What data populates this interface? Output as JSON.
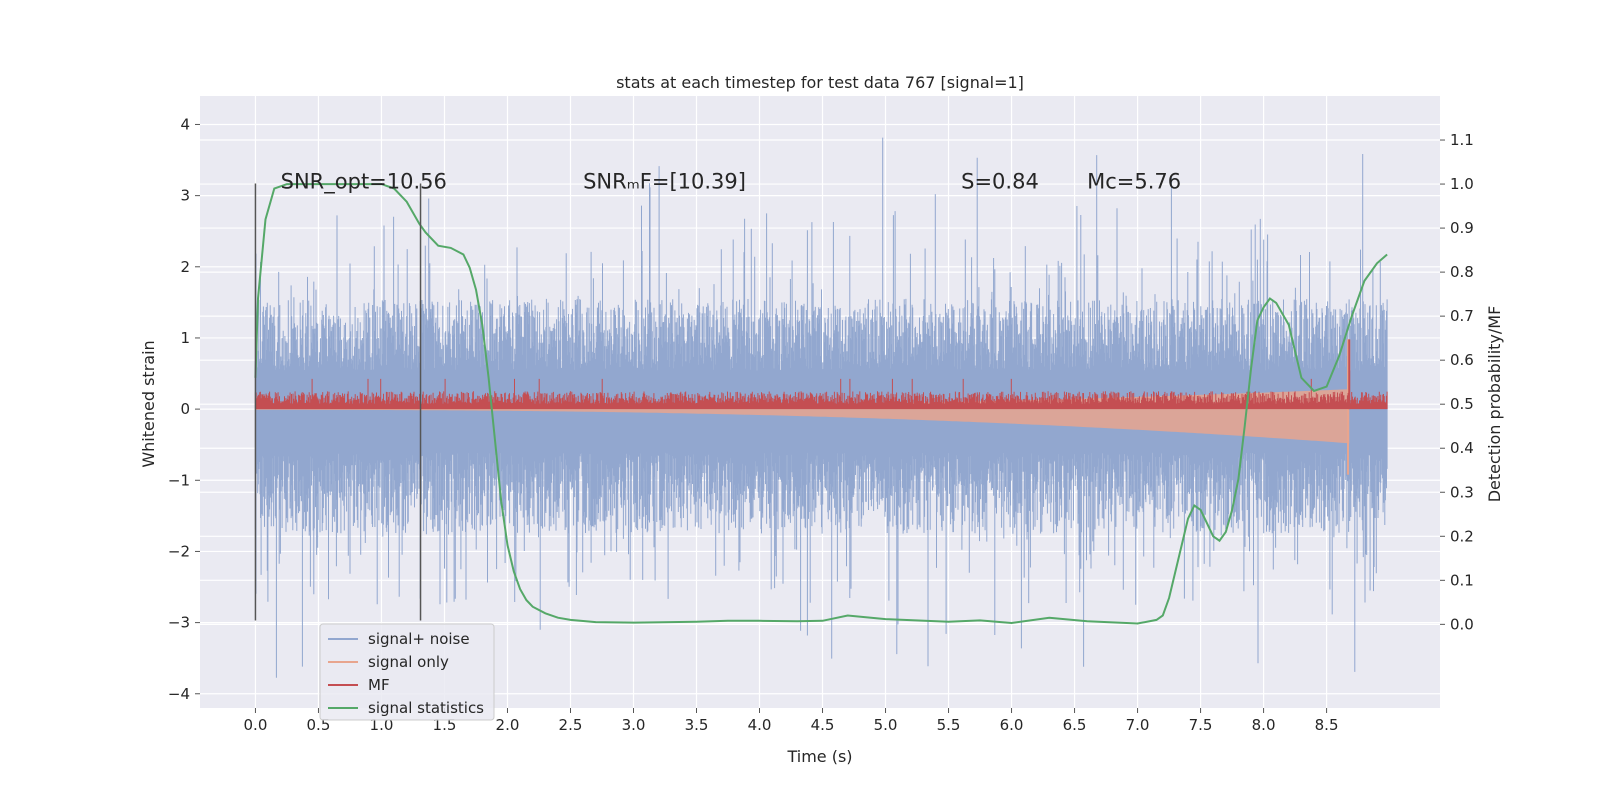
{
  "chart_data": {
    "type": "line",
    "title": "stats at each timestep for test data 767 [signal=1]",
    "xlabel": "Time (s)",
    "ylabel": "Whitened strain",
    "ylabel_right": "Detection probability/MF",
    "xlim": [
      -0.44,
      9.4
    ],
    "ylim": [
      -4.2,
      4.4
    ],
    "ylim_right": [
      -0.19,
      1.2
    ],
    "x_ticks": [
      0.0,
      0.5,
      1.0,
      1.5,
      2.0,
      2.5,
      3.0,
      3.5,
      4.0,
      4.5,
      5.0,
      5.5,
      6.0,
      6.5,
      7.0,
      7.5,
      8.0,
      8.5
    ],
    "x_tick_labels": [
      "0.0",
      "0.5",
      "1.0",
      "1.5",
      "2.0",
      "2.5",
      "3.0",
      "3.5",
      "4.0",
      "4.5",
      "5.0",
      "5.5",
      "6.0",
      "6.5",
      "7.0",
      "7.5",
      "8.0",
      "8.5"
    ],
    "y_ticks": [
      -4,
      -3,
      -2,
      -1,
      0,
      1,
      2,
      3,
      4
    ],
    "y_tick_labels": [
      "−4",
      "−3",
      "−2",
      "−1",
      "0",
      "1",
      "2",
      "3",
      "4"
    ],
    "y_right_ticks": [
      0.0,
      0.1,
      0.2,
      0.3,
      0.4,
      0.5,
      0.6,
      0.7,
      0.8,
      0.9,
      1.0,
      1.1
    ],
    "y_right_tick_labels": [
      "0.0",
      "0.1",
      "0.2",
      "0.3",
      "0.4",
      "0.5",
      "0.6",
      "0.7",
      "0.8",
      "0.9",
      "1.0",
      "1.1"
    ],
    "annotations": [
      {
        "id": "snr-opt",
        "text": "SNR_opt=10.56",
        "x": 0.2,
        "y": 3.2
      },
      {
        "id": "snr-mf",
        "text": "SNRₘF=[10.39]",
        "x": 2.6,
        "y": 3.2
      },
      {
        "id": "s-value",
        "text": "S=0.84",
        "x": 5.6,
        "y": 3.2
      },
      {
        "id": "mc-value",
        "text": "Mᴄ=5.76",
        "x": 6.6,
        "y": 3.2
      }
    ],
    "vertical_markers": [
      {
        "x": 0.0,
        "y_range": [
          -2.97,
          3.17
        ]
      },
      {
        "x": 1.31,
        "y_range": [
          -2.97,
          3.17
        ]
      }
    ],
    "series": [
      {
        "name": "signal+ noise",
        "color": "#92a7cf",
        "x_range": [
          0.0,
          8.98
        ],
        "envelope_upper": 1.55,
        "envelope_lower": -1.75,
        "peak_max": 4.02,
        "peak_min": -3.82
      },
      {
        "name": "signal only",
        "color": "#e8a58e",
        "x_range": [
          0.0,
          8.68
        ],
        "start_amplitude": 0.01,
        "end_amplitude_upper": 0.28,
        "end_amplitude_lower": -0.48,
        "spike": [
          0.98,
          -0.92
        ]
      },
      {
        "name": "MF",
        "color": "#c44e52",
        "x_range": [
          0.0,
          8.98
        ],
        "baseline": 0.0,
        "typical_max": 0.25,
        "peak": 0.98
      },
      {
        "name": "signal statistics",
        "color": "#55a868",
        "axis": "right",
        "x": [
          0.0,
          0.02,
          0.08,
          0.15,
          0.25,
          0.5,
          0.8,
          1.0,
          1.1,
          1.2,
          1.3,
          1.35,
          1.45,
          1.55,
          1.65,
          1.7,
          1.75,
          1.8,
          1.85,
          1.9,
          1.95,
          2.0,
          2.05,
          2.1,
          2.15,
          2.2,
          2.3,
          2.4,
          2.5,
          2.7,
          3.0,
          3.5,
          3.75,
          4.0,
          4.3,
          4.5,
          4.7,
          5.0,
          5.5,
          5.75,
          6.0,
          6.3,
          6.6,
          7.0,
          7.15,
          7.2,
          7.25,
          7.3,
          7.35,
          7.4,
          7.45,
          7.5,
          7.55,
          7.6,
          7.65,
          7.7,
          7.75,
          7.8,
          7.85,
          7.9,
          7.95,
          8.0,
          8.05,
          8.1,
          8.2,
          8.3,
          8.4,
          8.5,
          8.6,
          8.7,
          8.8,
          8.9,
          8.98
        ],
        "y": [
          0.56,
          0.74,
          0.92,
          0.99,
          1.0,
          1.0,
          1.0,
          1.0,
          0.99,
          0.96,
          0.91,
          0.89,
          0.86,
          0.855,
          0.84,
          0.81,
          0.76,
          0.68,
          0.56,
          0.42,
          0.28,
          0.18,
          0.12,
          0.08,
          0.055,
          0.04,
          0.025,
          0.015,
          0.01,
          0.005,
          0.004,
          0.006,
          0.008,
          0.008,
          0.007,
          0.008,
          0.02,
          0.012,
          0.006,
          0.009,
          0.003,
          0.015,
          0.007,
          0.002,
          0.01,
          0.02,
          0.06,
          0.12,
          0.18,
          0.24,
          0.27,
          0.26,
          0.23,
          0.2,
          0.19,
          0.21,
          0.26,
          0.33,
          0.45,
          0.58,
          0.69,
          0.72,
          0.74,
          0.73,
          0.68,
          0.56,
          0.53,
          0.54,
          0.61,
          0.7,
          0.78,
          0.82,
          0.84
        ]
      }
    ],
    "legend": {
      "location": "lower-left"
    }
  }
}
